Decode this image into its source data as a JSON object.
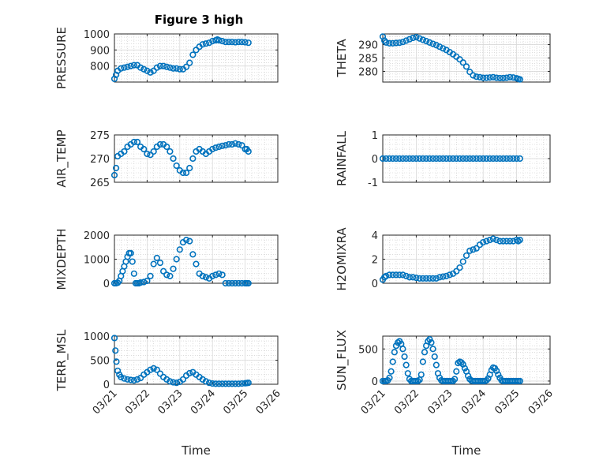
{
  "figure": {
    "title": "Figure 3 high",
    "marker_color": "#0072BD"
  },
  "chart_data": [
    {
      "type": "scatter",
      "title": "Figure 3 high",
      "ylabel": "PRESSURE",
      "xlabel": "",
      "ylim": [
        700,
        1000
      ],
      "yticks": [
        800,
        900,
        1000
      ],
      "xlim": [
        0,
        5
      ],
      "xticks": [
        0,
        1,
        2,
        3,
        4,
        5
      ],
      "xticklabels": [],
      "grid": true,
      "minor_grid": true,
      "x": [
        0.0,
        0.05,
        0.1,
        0.2,
        0.3,
        0.4,
        0.5,
        0.6,
        0.7,
        0.8,
        0.9,
        1.0,
        1.1,
        1.2,
        1.3,
        1.4,
        1.5,
        1.6,
        1.7,
        1.8,
        1.9,
        2.0,
        2.1,
        2.2,
        2.3,
        2.4,
        2.5,
        2.6,
        2.7,
        2.8,
        2.9,
        3.0,
        3.1,
        3.15,
        3.2,
        3.3,
        3.4,
        3.5,
        3.6,
        3.7,
        3.8,
        3.9,
        4.0,
        4.1
      ],
      "y": [
        720,
        745,
        770,
        785,
        790,
        795,
        800,
        805,
        805,
        790,
        780,
        770,
        760,
        770,
        790,
        800,
        800,
        795,
        790,
        785,
        785,
        780,
        780,
        795,
        820,
        870,
        900,
        920,
        935,
        940,
        945,
        955,
        960,
        965,
        960,
        955,
        950,
        950,
        950,
        948,
        950,
        950,
        948,
        945
      ]
    },
    {
      "type": "scatter",
      "title": "",
      "ylabel": "THETA",
      "xlabel": "",
      "ylim": [
        276,
        294
      ],
      "yticks": [
        280,
        285,
        290
      ],
      "xlim": [
        0,
        5
      ],
      "xticks": [
        0,
        1,
        2,
        3,
        4,
        5
      ],
      "xticklabels": [],
      "grid": true,
      "minor_grid": true,
      "x": [
        0.0,
        0.05,
        0.1,
        0.2,
        0.3,
        0.4,
        0.5,
        0.6,
        0.7,
        0.8,
        0.9,
        1.0,
        1.1,
        1.2,
        1.3,
        1.4,
        1.5,
        1.6,
        1.7,
        1.8,
        1.9,
        2.0,
        2.1,
        2.2,
        2.3,
        2.4,
        2.5,
        2.6,
        2.7,
        2.8,
        2.9,
        3.0,
        3.1,
        3.2,
        3.3,
        3.4,
        3.5,
        3.6,
        3.7,
        3.8,
        3.9,
        4.0,
        4.05,
        4.1
      ],
      "y": [
        293,
        291.5,
        290.8,
        290.5,
        290.5,
        290.6,
        290.7,
        291.0,
        291.5,
        292.0,
        292.5,
        292.8,
        292.3,
        291.8,
        291.3,
        290.8,
        290.3,
        289.8,
        289.2,
        288.6,
        288.0,
        287.2,
        286.4,
        285.5,
        284.5,
        283.3,
        281.8,
        279.8,
        278.5,
        278.0,
        277.8,
        277.6,
        277.6,
        277.7,
        277.8,
        277.6,
        277.5,
        277.5,
        277.6,
        277.8,
        277.7,
        277.4,
        277.2,
        277.0
      ]
    },
    {
      "type": "scatter",
      "title": "",
      "ylabel": "AIR_TEMP",
      "xlabel": "",
      "ylim": [
        265,
        275
      ],
      "yticks": [
        265,
        270,
        275
      ],
      "xlim": [
        0,
        5
      ],
      "xticks": [
        0,
        1,
        2,
        3,
        4,
        5
      ],
      "xticklabels": [],
      "grid": true,
      "minor_grid": true,
      "x": [
        0.0,
        0.05,
        0.1,
        0.2,
        0.3,
        0.4,
        0.5,
        0.6,
        0.7,
        0.8,
        0.9,
        1.0,
        1.1,
        1.2,
        1.3,
        1.4,
        1.5,
        1.6,
        1.7,
        1.8,
        1.9,
        2.0,
        2.1,
        2.2,
        2.3,
        2.4,
        2.5,
        2.6,
        2.7,
        2.8,
        2.9,
        3.0,
        3.1,
        3.2,
        3.3,
        3.4,
        3.5,
        3.6,
        3.7,
        3.8,
        3.9,
        4.0,
        4.05,
        4.1
      ],
      "y": [
        266.5,
        268,
        270.5,
        271,
        271.5,
        272.5,
        273,
        273.5,
        273.5,
        272.5,
        272,
        271,
        270.8,
        271.5,
        272.5,
        273,
        273,
        272.5,
        271.5,
        270,
        268.5,
        267.5,
        267,
        267,
        268,
        270,
        271.5,
        272,
        271.5,
        271,
        271.5,
        272,
        272.3,
        272.5,
        272.7,
        272.8,
        273,
        273,
        273.2,
        273,
        272.8,
        272,
        272,
        271.5
      ]
    },
    {
      "type": "scatter",
      "title": "",
      "ylabel": "RAINFALL",
      "xlabel": "",
      "ylim": [
        -1,
        1
      ],
      "yticks": [
        -1,
        0,
        1
      ],
      "xlim": [
        0,
        5
      ],
      "xticks": [
        0,
        1,
        2,
        3,
        4,
        5
      ],
      "xticklabels": [],
      "grid": true,
      "minor_grid": true,
      "x": [
        0.0,
        0.1,
        0.2,
        0.3,
        0.4,
        0.5,
        0.6,
        0.7,
        0.8,
        0.9,
        1.0,
        1.1,
        1.2,
        1.3,
        1.4,
        1.5,
        1.6,
        1.7,
        1.8,
        1.9,
        2.0,
        2.1,
        2.2,
        2.3,
        2.4,
        2.5,
        2.6,
        2.7,
        2.8,
        2.9,
        3.0,
        3.1,
        3.2,
        3.3,
        3.4,
        3.5,
        3.6,
        3.7,
        3.8,
        3.9,
        4.0,
        4.1
      ],
      "y": [
        0,
        0,
        0,
        0,
        0,
        0,
        0,
        0,
        0,
        0,
        0,
        0,
        0,
        0,
        0,
        0,
        0,
        0,
        0,
        0,
        0,
        0,
        0,
        0,
        0,
        0,
        0,
        0,
        0,
        0,
        0,
        0,
        0,
        0,
        0,
        0,
        0,
        0,
        0,
        0,
        0,
        0
      ]
    },
    {
      "type": "scatter",
      "title": "",
      "ylabel": "MIXDEPTH",
      "xlabel": "",
      "ylim": [
        0,
        2000
      ],
      "yticks": [
        0,
        1000,
        2000
      ],
      "xlim": [
        0,
        5
      ],
      "xticks": [
        0,
        1,
        2,
        3,
        4,
        5
      ],
      "xticklabels": [],
      "grid": true,
      "minor_grid": true,
      "x": [
        0.0,
        0.05,
        0.1,
        0.15,
        0.2,
        0.25,
        0.3,
        0.35,
        0.4,
        0.45,
        0.5,
        0.55,
        0.6,
        0.65,
        0.7,
        0.75,
        0.8,
        0.9,
        1.0,
        1.1,
        1.2,
        1.3,
        1.4,
        1.5,
        1.6,
        1.7,
        1.8,
        1.9,
        2.0,
        2.1,
        2.2,
        2.3,
        2.4,
        2.5,
        2.6,
        2.7,
        2.8,
        2.9,
        3.0,
        3.1,
        3.2,
        3.3,
        3.4,
        3.5,
        3.6,
        3.7,
        3.8,
        3.9,
        4.0,
        4.05,
        4.1
      ],
      "y": [
        0,
        0,
        20,
        100,
        300,
        500,
        700,
        900,
        1100,
        1250,
        1250,
        900,
        400,
        0,
        0,
        0,
        30,
        50,
        100,
        300,
        800,
        1050,
        850,
        500,
        350,
        300,
        600,
        1000,
        1400,
        1700,
        1800,
        1750,
        1200,
        800,
        400,
        300,
        250,
        200,
        300,
        350,
        400,
        350,
        0,
        0,
        0,
        0,
        0,
        0,
        0,
        0,
        0
      ]
    },
    {
      "type": "scatter",
      "title": "",
      "ylabel": "H2OMIXRA",
      "xlabel": "",
      "ylim": [
        0,
        4
      ],
      "yticks": [
        0,
        2,
        4
      ],
      "xlim": [
        0,
        5
      ],
      "xticks": [
        0,
        1,
        2,
        3,
        4,
        5
      ],
      "xticklabels": [],
      "grid": true,
      "minor_grid": true,
      "x": [
        0.0,
        0.05,
        0.1,
        0.2,
        0.3,
        0.4,
        0.5,
        0.6,
        0.7,
        0.8,
        0.9,
        1.0,
        1.1,
        1.2,
        1.3,
        1.4,
        1.5,
        1.6,
        1.7,
        1.8,
        1.9,
        2.0,
        2.1,
        2.2,
        2.3,
        2.4,
        2.5,
        2.6,
        2.7,
        2.8,
        2.9,
        3.0,
        3.1,
        3.2,
        3.3,
        3.4,
        3.5,
        3.6,
        3.7,
        3.8,
        3.9,
        4.0,
        4.05,
        4.1
      ],
      "y": [
        0.3,
        0.5,
        0.6,
        0.7,
        0.7,
        0.7,
        0.7,
        0.7,
        0.6,
        0.5,
        0.5,
        0.45,
        0.4,
        0.4,
        0.4,
        0.4,
        0.4,
        0.4,
        0.5,
        0.55,
        0.6,
        0.7,
        0.8,
        1.0,
        1.3,
        1.8,
        2.3,
        2.7,
        2.8,
        2.9,
        3.2,
        3.4,
        3.5,
        3.6,
        3.7,
        3.6,
        3.5,
        3.5,
        3.5,
        3.5,
        3.5,
        3.6,
        3.5,
        3.6
      ]
    },
    {
      "type": "scatter",
      "title": "",
      "ylabel": "TERR_MSL",
      "xlabel": "Time",
      "ylim": [
        0,
        1000
      ],
      "yticks": [
        0,
        500,
        1000
      ],
      "xlim": [
        0,
        5
      ],
      "xticks": [
        0,
        1,
        2,
        3,
        4,
        5
      ],
      "xticklabels": [
        "03/21",
        "03/22",
        "03/23",
        "03/24",
        "03/25",
        "03/26"
      ],
      "grid": true,
      "minor_grid": true,
      "x": [
        0.0,
        0.03,
        0.06,
        0.1,
        0.15,
        0.2,
        0.3,
        0.4,
        0.5,
        0.6,
        0.7,
        0.8,
        0.9,
        1.0,
        1.1,
        1.2,
        1.3,
        1.4,
        1.5,
        1.6,
        1.7,
        1.8,
        1.9,
        2.0,
        2.1,
        2.2,
        2.3,
        2.4,
        2.5,
        2.6,
        2.7,
        2.8,
        2.9,
        3.0,
        3.1,
        3.2,
        3.3,
        3.4,
        3.5,
        3.6,
        3.7,
        3.8,
        3.9,
        4.0,
        4.05,
        4.1
      ],
      "y": [
        960,
        700,
        470,
        280,
        200,
        150,
        120,
        100,
        90,
        80,
        100,
        130,
        200,
        250,
        300,
        330,
        300,
        220,
        150,
        100,
        60,
        40,
        30,
        50,
        100,
        180,
        230,
        250,
        200,
        150,
        100,
        60,
        30,
        15,
        10,
        10,
        10,
        10,
        10,
        10,
        10,
        10,
        15,
        20,
        25,
        30
      ]
    },
    {
      "type": "scatter",
      "title": "",
      "ylabel": "SUN_FLUX",
      "xlabel": "Time",
      "ylim": [
        -50,
        700
      ],
      "yticks": [
        0,
        500
      ],
      "xlim": [
        0,
        5
      ],
      "xticks": [
        0,
        1,
        2,
        3,
        4,
        5
      ],
      "xticklabels": [
        "03/21",
        "03/22",
        "03/23",
        "03/24",
        "03/25",
        "03/26"
      ],
      "grid": true,
      "minor_grid": true,
      "x": [
        0.0,
        0.05,
        0.1,
        0.15,
        0.2,
        0.25,
        0.3,
        0.35,
        0.4,
        0.45,
        0.5,
        0.55,
        0.6,
        0.65,
        0.7,
        0.75,
        0.8,
        0.85,
        0.9,
        0.95,
        1.0,
        1.05,
        1.1,
        1.15,
        1.2,
        1.25,
        1.3,
        1.35,
        1.4,
        1.45,
        1.5,
        1.55,
        1.6,
        1.65,
        1.7,
        1.75,
        1.8,
        1.85,
        1.9,
        1.95,
        2.0,
        2.05,
        2.1,
        2.15,
        2.2,
        2.25,
        2.3,
        2.35,
        2.4,
        2.45,
        2.5,
        2.55,
        2.6,
        2.65,
        2.7,
        2.75,
        2.8,
        2.85,
        2.9,
        2.95,
        3.0,
        3.05,
        3.1,
        3.15,
        3.2,
        3.25,
        3.3,
        3.35,
        3.4,
        3.45,
        3.5,
        3.55,
        3.6,
        3.65,
        3.7,
        3.75,
        3.8,
        3.85,
        3.9,
        3.95,
        4.0,
        4.05,
        4.1
      ],
      "y": [
        0,
        0,
        0,
        10,
        50,
        150,
        300,
        450,
        550,
        600,
        620,
        580,
        500,
        380,
        250,
        120,
        30,
        0,
        0,
        0,
        0,
        0,
        20,
        100,
        300,
        450,
        550,
        620,
        650,
        600,
        500,
        380,
        250,
        120,
        50,
        10,
        0,
        0,
        0,
        0,
        0,
        0,
        0,
        30,
        150,
        280,
        300,
        290,
        260,
        200,
        150,
        80,
        30,
        5,
        0,
        0,
        0,
        0,
        0,
        0,
        0,
        0,
        10,
        40,
        100,
        170,
        210,
        200,
        160,
        100,
        50,
        10,
        0,
        0,
        0,
        0,
        0,
        0,
        0,
        0,
        0,
        0,
        0
      ]
    }
  ]
}
